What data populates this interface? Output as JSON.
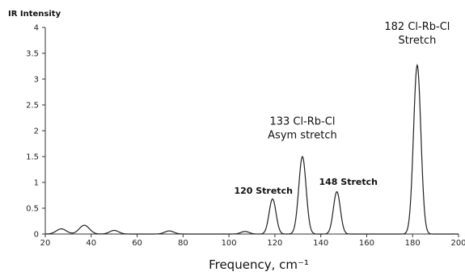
{
  "chart_data": {
    "type": "line",
    "title": "",
    "xlabel": "Frequency, cm⁻¹",
    "ylabel": "IR Intensity",
    "xlim": [
      20,
      200
    ],
    "ylim": [
      0,
      4
    ],
    "x_ticks": [
      20,
      40,
      60,
      80,
      100,
      120,
      140,
      160,
      180,
      200
    ],
    "y_ticks": [
      0,
      0.5,
      1,
      1.5,
      2,
      2.5,
      3,
      3.5,
      4
    ],
    "grid": false,
    "legend": "none",
    "line_color": "#222222",
    "peaks": [
      {
        "x": 27,
        "y": 0.1,
        "width": 2.2
      },
      {
        "x": 37,
        "y": 0.17,
        "width": 2.2
      },
      {
        "x": 50,
        "y": 0.07,
        "width": 2.0
      },
      {
        "x": 74,
        "y": 0.06,
        "width": 2.0
      },
      {
        "x": 107,
        "y": 0.05,
        "width": 1.8
      },
      {
        "x": 119,
        "y": 0.68,
        "width": 1.5
      },
      {
        "x": 132,
        "y": 1.5,
        "width": 1.6
      },
      {
        "x": 147,
        "y": 0.82,
        "width": 1.5
      },
      {
        "x": 182,
        "y": 3.27,
        "width": 1.6
      }
    ],
    "annotations": [
      {
        "lines": [
          "182 Cl-Rb-Cl",
          "Stretch"
        ],
        "x": 182,
        "y": 3.95,
        "style": "normal"
      },
      {
        "lines": [
          "133 Cl-Rb-Cl",
          "Asym stretch"
        ],
        "x": 132,
        "y": 2.12,
        "style": "normal"
      },
      {
        "lines": [
          "120 Stretch"
        ],
        "x": 115,
        "y": 0.78,
        "style": "bold"
      },
      {
        "lines": [
          "148 Stretch"
        ],
        "x": 152,
        "y": 0.95,
        "style": "bold"
      }
    ]
  }
}
